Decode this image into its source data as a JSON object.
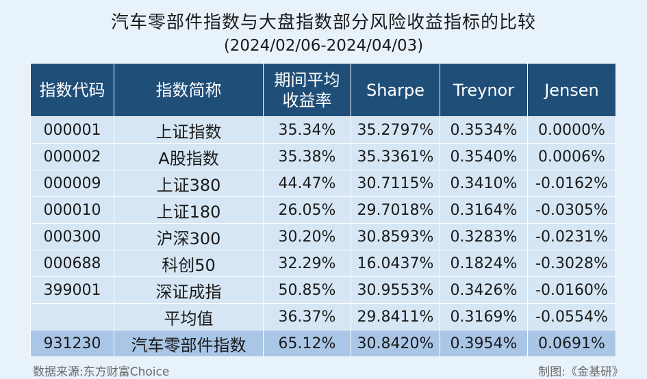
{
  "chart_data": {
    "type": "table",
    "title": "汽车零部件指数与大盘指数部分风险收益指标的比较",
    "subtitle": "(2024/02/06-2024/04/03)",
    "columns": [
      "指数代码",
      "指数简称",
      "期间平均收益率",
      "Sharpe",
      "Treynor",
      "Jensen"
    ],
    "rows": [
      [
        "000001",
        "上证指数",
        "35.34%",
        "35.2797%",
        "0.3534%",
        "0.0000%"
      ],
      [
        "000002",
        "A股指数",
        "35.38%",
        "35.3361%",
        "0.3540%",
        "0.0006%"
      ],
      [
        "000009",
        "上证380",
        "44.47%",
        "30.7115%",
        "0.3410%",
        "-0.0162%"
      ],
      [
        "000010",
        "上证180",
        "26.05%",
        "29.7018%",
        "0.3164%",
        "-0.0305%"
      ],
      [
        "000300",
        "沪深300",
        "30.20%",
        "30.8593%",
        "0.3283%",
        "-0.0231%"
      ],
      [
        "000688",
        "科创50",
        "32.29%",
        "16.0437%",
        "0.1824%",
        "-0.3028%"
      ],
      [
        "399001",
        "深证成指",
        "50.85%",
        "30.9553%",
        "0.3426%",
        "-0.0160%"
      ],
      [
        "",
        "平均值",
        "36.37%",
        "29.8411%",
        "0.3169%",
        "-0.0554%"
      ],
      [
        "931230",
        "汽车零部件指数",
        "65.12%",
        "30.8420%",
        "0.3954%",
        "0.0691%"
      ]
    ]
  },
  "footer": {
    "source": "数据来源:东方财富Choice",
    "credit": "制图:《金基研》"
  },
  "colors": {
    "header_bg": "#1f4e79",
    "row_bg": "#d6e6f4",
    "highlight_bg": "#a9c6e6",
    "page_bg": "#e8f2fa"
  }
}
